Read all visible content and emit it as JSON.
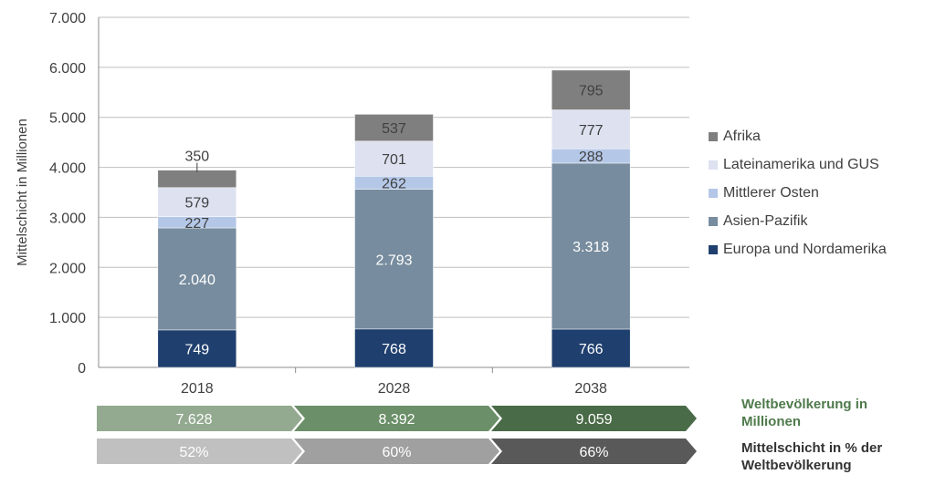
{
  "chart_data": {
    "type": "bar",
    "stacked": true,
    "categories": [
      "2018",
      "2028",
      "2038"
    ],
    "ylabel": "Mittelschicht in Millionen",
    "ylim": [
      0,
      7000
    ],
    "yticks": [
      "0",
      "1.000",
      "2.000",
      "3.000",
      "4.000",
      "5.000",
      "6.000",
      "7.000"
    ],
    "grid": true,
    "legend_position": "right",
    "series": [
      {
        "name": "Europa und Nordamerika",
        "values": [
          749,
          768,
          766
        ],
        "labels": [
          "749",
          "768",
          "766"
        ],
        "color": "#1f3f6e",
        "label_color": "#ffffff"
      },
      {
        "name": "Asien-Pazifik",
        "values": [
          2040,
          2793,
          3318
        ],
        "labels": [
          "2.040",
          "2.793",
          "3.318"
        ],
        "color": "#778c9e",
        "label_color": "#ffffff"
      },
      {
        "name": "Mittlerer Osten",
        "values": [
          227,
          262,
          288
        ],
        "labels": [
          "227",
          "262",
          "288"
        ],
        "color": "#b4c7e7",
        "label_color": "#404040"
      },
      {
        "name": "Lateinamerika und GUS",
        "values": [
          579,
          701,
          777
        ],
        "labels": [
          "579",
          "701",
          "777"
        ],
        "color": "#dde1f0",
        "label_color": "#404040"
      },
      {
        "name": "Afrika",
        "values": [
          350,
          537,
          795
        ],
        "labels": [
          "350",
          "537",
          "795"
        ],
        "color": "#7f7f7f",
        "label_color": "#404040"
      }
    ]
  },
  "rows": [
    {
      "caption": "Weltbevölkerung in Millionen",
      "values": [
        "7.628",
        "8.392",
        "9.059"
      ],
      "colors": [
        "#93aa90",
        "#6b8f68",
        "#4a6b47"
      ]
    },
    {
      "caption": "Mittelschicht in % der Weltbevölkerung",
      "values": [
        "52%",
        "60%",
        "66%"
      ],
      "colors": [
        "#c0c0c0",
        "#a0a0a0",
        "#595959"
      ]
    }
  ]
}
